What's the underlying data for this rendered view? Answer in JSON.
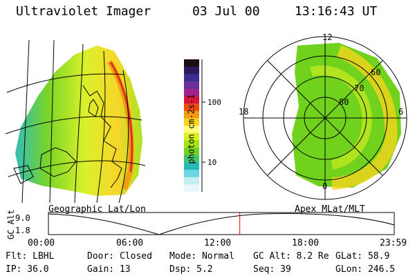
{
  "header": {
    "title": "Ultraviolet Imager",
    "date": "03 Jul 00",
    "time": "13:16:43 UT"
  },
  "colorbar": {
    "label": "photon cm-2s-1",
    "ticks": [
      "100",
      "10"
    ],
    "colors": [
      "#1a0f12",
      "#2b1b5c",
      "#3a2f8f",
      "#6a2f9a",
      "#a0238a",
      "#d8143c",
      "#ee4a12",
      "#f29a10",
      "#f6d41e",
      "#fdfd7a",
      "#d8f020",
      "#a6e218",
      "#70d21c",
      "#3fc66a",
      "#2ab8b4",
      "#6ad8e4",
      "#c4eef2",
      "#eaf7f8"
    ]
  },
  "left_panel": {
    "caption": "Geographic Lat/Lon"
  },
  "right_panel": {
    "caption": "Apex MLat/MLT",
    "mlt_labels": [
      "12",
      "18",
      "6",
      "0"
    ],
    "lat_labels": [
      "60",
      "70",
      "80"
    ]
  },
  "timeline": {
    "ylabel": "GC Alt",
    "yticks": [
      "9.0",
      "1.8"
    ],
    "xticks": [
      "00:00",
      "06:00",
      "12:00",
      "18:00",
      "23:59"
    ],
    "current_time_hours": 13.28,
    "current_color": "#e00000"
  },
  "info": {
    "filter": "Flt: LBHL",
    "door": "Door: Closed",
    "mode": "Mode: Normal",
    "gc_alt": "GC Alt: 8.2 Re",
    "glat": "GLat:  58.9",
    "ip": "IP: 36.0",
    "gain": "Gain: 13",
    "dsp": "Dsp:    5.2",
    "seq": "Seq: 39",
    "glon": "GLon: 246.5"
  }
}
